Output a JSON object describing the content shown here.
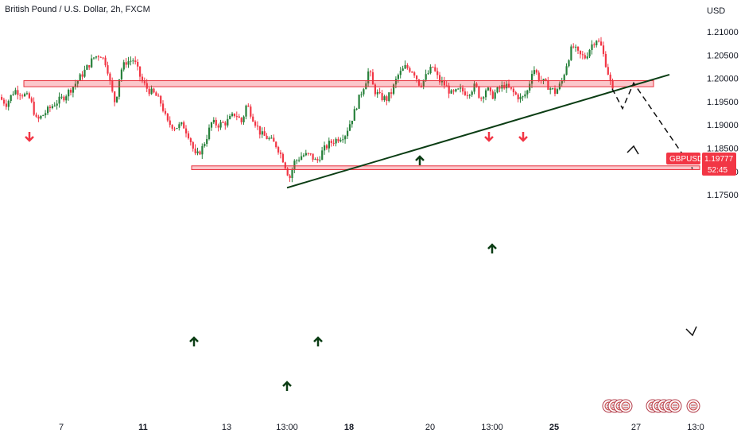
{
  "chart_title": "British Pound / U.S. Dollar, 2h, FXCM",
  "currency_label": "USD",
  "symbol_tag": "GBPUSD",
  "price_tag": {
    "price": "1.19777",
    "countdown": "52:45"
  },
  "colors": {
    "up": "#26803a",
    "down": "#f23645",
    "zone_fill": "rgba(242,54,69,0.28)",
    "zone_stroke": "#e8323e",
    "trendline": "#0b3d14",
    "arrow_up": "#0b3d14",
    "arrow_down": "#f23645"
  },
  "chart_data": {
    "type": "candlestick",
    "title": "British Pound / U.S. Dollar, 2h, FXCM",
    "y_axis": {
      "unit": "USD",
      "range": [
        1.1735,
        1.2125
      ],
      "ticks": [
        "1.21000",
        "1.20500",
        "1.20000",
        "1.19500",
        "1.19000",
        "1.18500",
        "1.18000",
        "1.17500"
      ]
    },
    "x_axis": {
      "ticks": [
        {
          "label": "7",
          "bold": false
        },
        {
          "label": "11",
          "bold": true
        },
        {
          "label": "13",
          "bold": false
        },
        {
          "label": "13:00",
          "bold": false
        },
        {
          "label": "18",
          "bold": true
        },
        {
          "label": "20",
          "bold": false
        },
        {
          "label": "13:00",
          "bold": false
        },
        {
          "label": "25",
          "bold": true
        },
        {
          "label": "27",
          "bold": false
        },
        {
          "label": "13:0",
          "bold": false
        }
      ]
    },
    "key_points": [
      {
        "where": "early high",
        "price": 1.2058
      },
      {
        "where": "low near 12th",
        "price": 1.1815
      },
      {
        "where": "swing low",
        "price": 1.1765
      },
      {
        "where": "rally high",
        "price": 1.2035
      },
      {
        "where": "peak",
        "price": 1.2093
      },
      {
        "where": "last price",
        "price": 1.19777
      }
    ],
    "zones": [
      {
        "name": "resistance-zone",
        "top": 1.1995,
        "bottom": 1.1982
      },
      {
        "name": "support-zone",
        "top": 1.1812,
        "bottom": 1.1804
      }
    ],
    "trendline": {
      "from": 1.1765,
      "to": 1.2008
    },
    "projection": [
      1.19777,
      1.1935,
      1.199,
      1.1806
    ]
  }
}
